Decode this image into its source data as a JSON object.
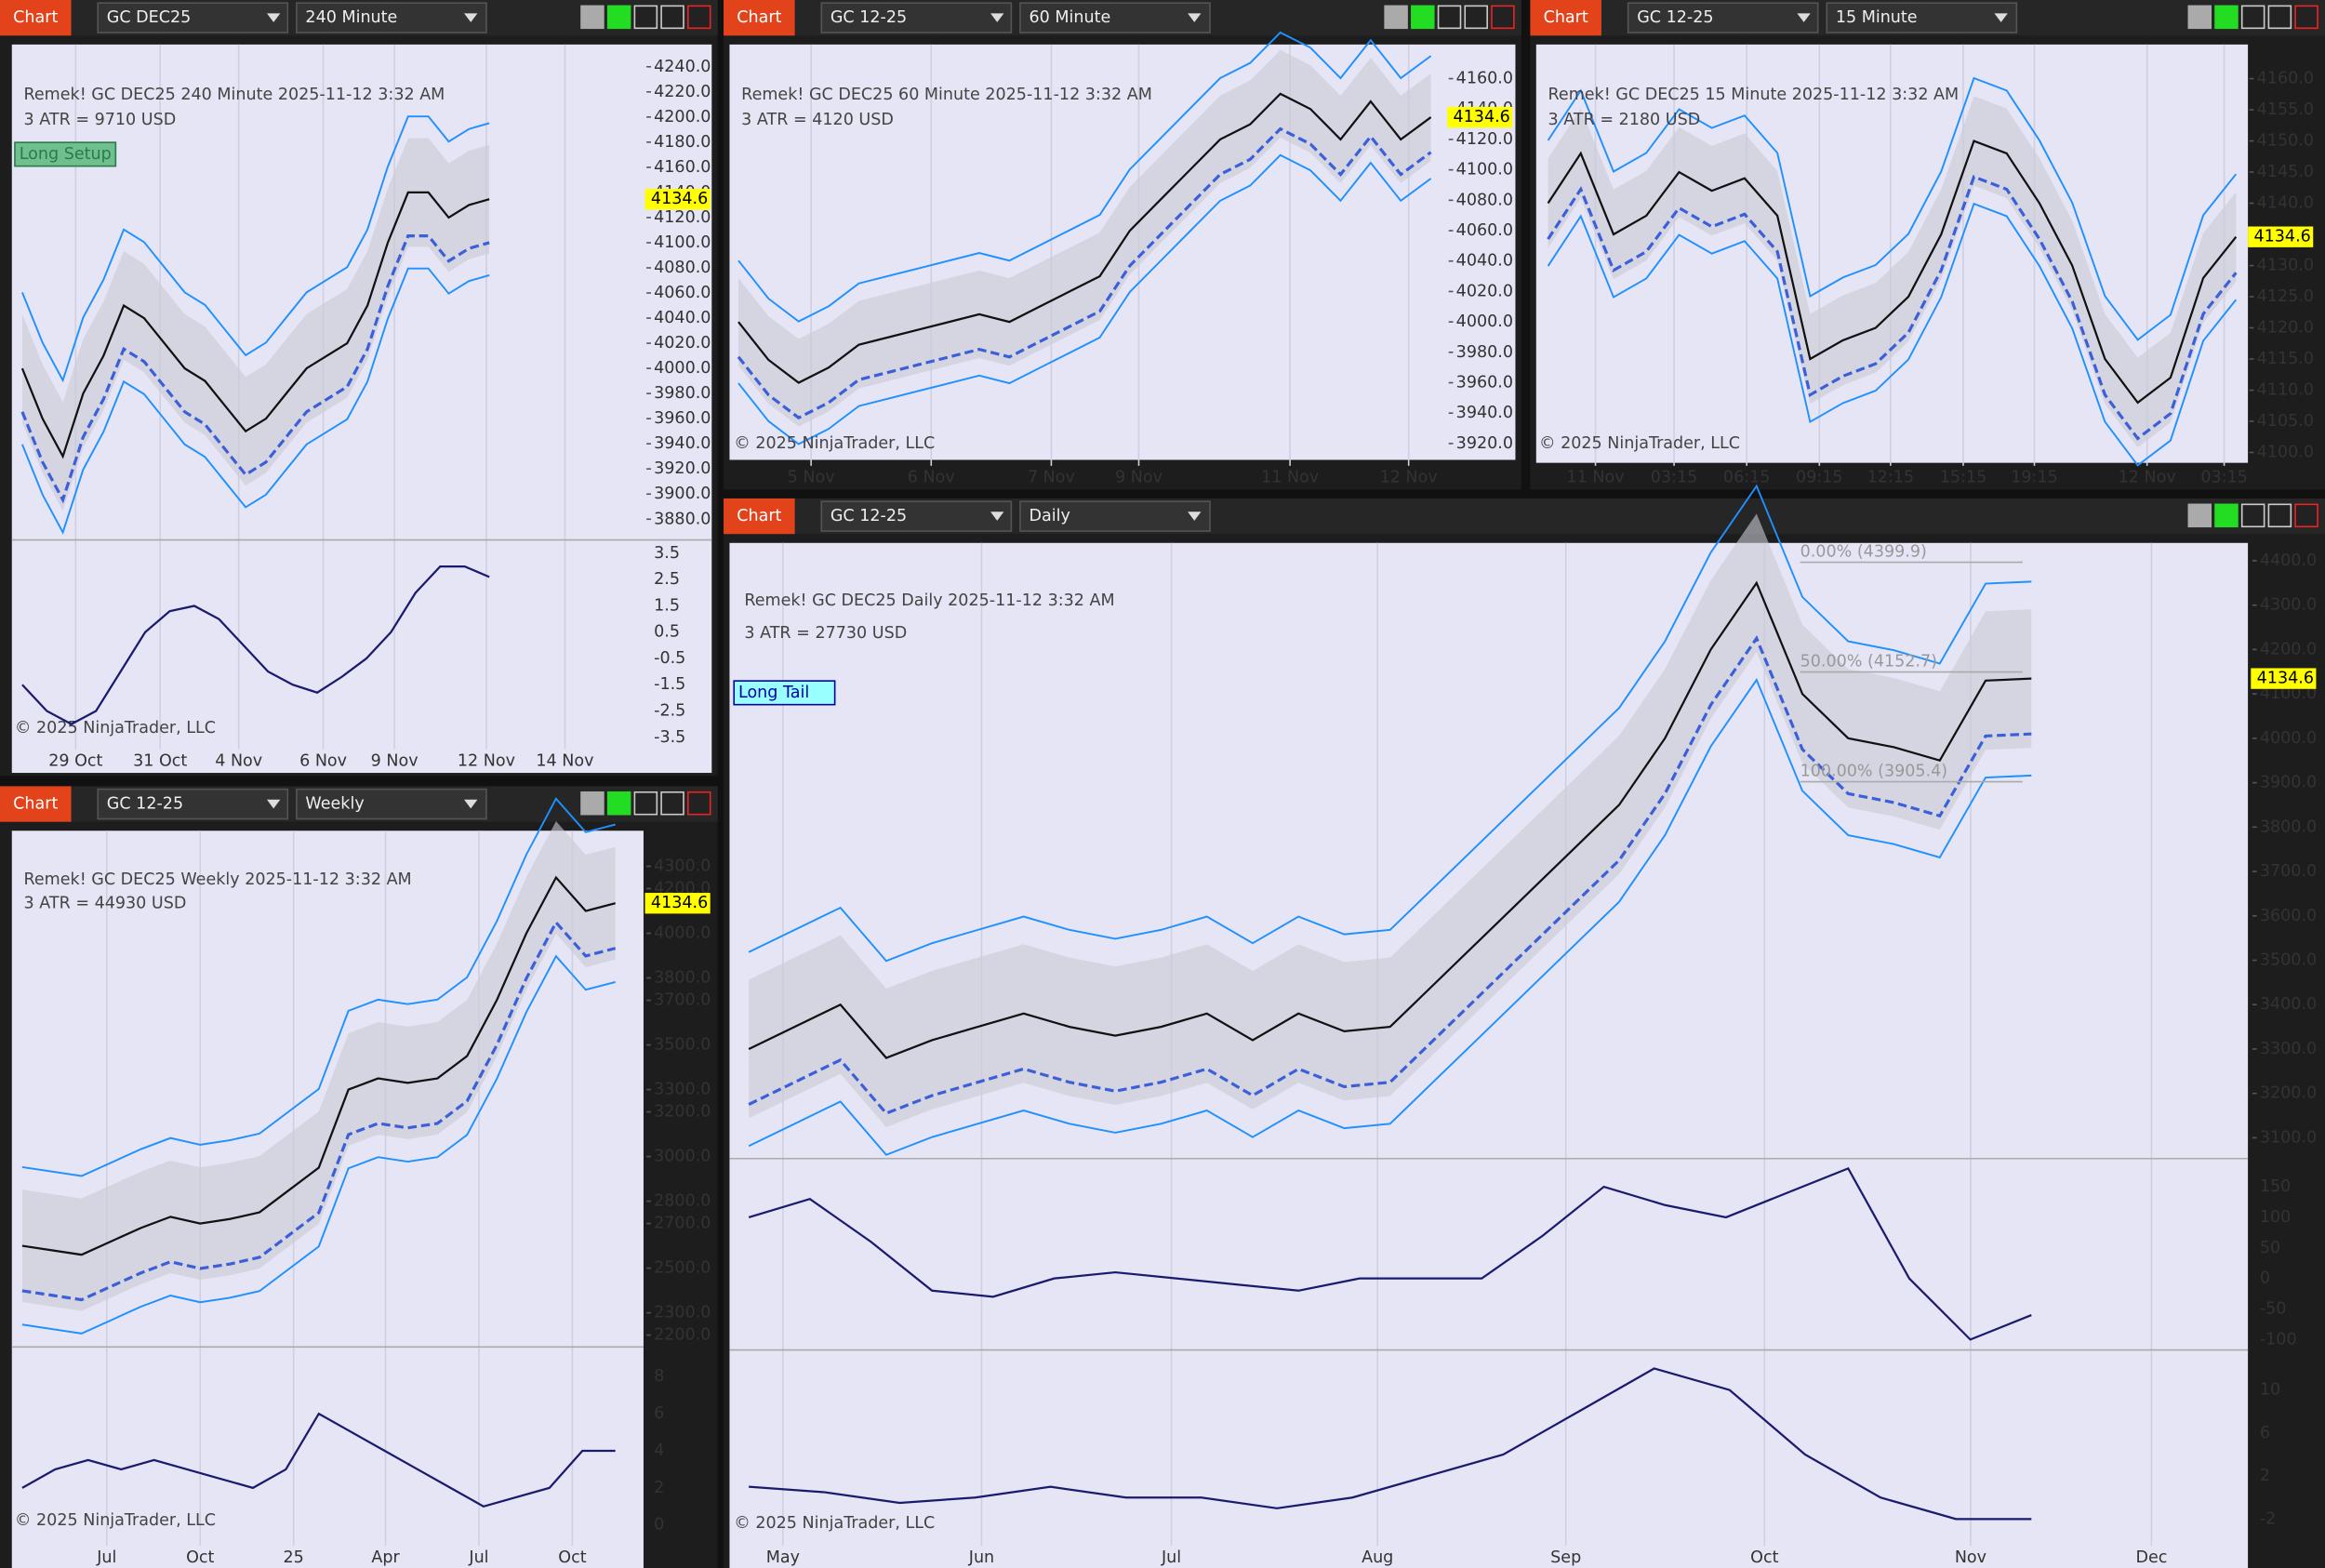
{
  "windows": [
    {
      "tab": "Chart",
      "instrument": "GC DEC25",
      "interval": "240 Minute",
      "header": "Remek!  GC DEC25  240 Minute  2025-11-12 3:32 AM",
      "atr": "3 ATR = 9710 USD",
      "tag": "Long Setup",
      "copyright": "© 2025 NinjaTrader, LLC",
      "price_labels": [
        "4240.0",
        "4220.0",
        "4200.0",
        "4180.0",
        "4160.0",
        "4140.0",
        "4120.0",
        "4100.0",
        "4080.0",
        "4060.0",
        "4040.0",
        "4020.0",
        "4000.0",
        "3980.0",
        "3960.0",
        "3940.0",
        "3920.0",
        "3900.0",
        "3880.0"
      ],
      "last_price": 4134.6,
      "x_labels": [
        "29 Oct",
        "31 Oct",
        "4 Nov",
        "6 Nov",
        "9 Nov",
        "12 Nov",
        "14 Nov"
      ],
      "closes": [
        4000,
        3960,
        3930,
        3980,
        4010,
        4050,
        4040,
        4020,
        4000,
        3990,
        3970,
        3950,
        3960,
        3980,
        4000,
        4010,
        4020,
        4050,
        4100,
        4140,
        4140,
        4120,
        4130,
        4134.6
      ],
      "lower_panes": [
        {
          "labels": [
            "3.5",
            "2.5",
            "1.5",
            "0.5",
            "-0.5",
            "-1.5",
            "-2.5",
            "-3.5"
          ],
          "values": [
            -1.5,
            -2.5,
            -3,
            -2.5,
            -1,
            0.5,
            1.3,
            1.5,
            1,
            0,
            -1,
            -1.5,
            -1.8,
            -1.2,
            -0.5,
            0.5,
            2,
            3,
            3,
            2.6
          ]
        }
      ]
    },
    {
      "tab": "Chart",
      "instrument": "GC 12-25",
      "interval": "60 Minute",
      "header": "Remek!  GC DEC25  60 Minute  2025-11-12 3:32 AM",
      "atr": "3 ATR = 4120 USD",
      "copyright": "© 2025 NinjaTrader, LLC",
      "price_labels": [
        "4160.0",
        "4140.0",
        "4120.0",
        "4100.0",
        "4080.0",
        "4060.0",
        "4040.0",
        "4020.0",
        "4000.0",
        "3980.0",
        "3960.0",
        "3940.0",
        "3920.0"
      ],
      "last_price": 4134.6,
      "x_labels": [
        "5 Nov",
        "6 Nov",
        "7 Nov",
        "9 Nov",
        "11 Nov",
        "12 Nov"
      ],
      "closes": [
        4000,
        3975,
        3960,
        3970,
        3985,
        3990,
        3995,
        4000,
        4005,
        4000,
        4010,
        4020,
        4030,
        4060,
        4080,
        4100,
        4120,
        4130,
        4150,
        4140,
        4120,
        4145,
        4120,
        4134.6
      ],
      "lower_panes": []
    },
    {
      "tab": "Chart",
      "instrument": "GC 12-25",
      "interval": "15 Minute",
      "header": "Remek!  GC DEC25  15 Minute  2025-11-12 3:32 AM",
      "atr": "3 ATR = 2180 USD",
      "copyright": "© 2025 NinjaTrader, LLC",
      "price_labels": [
        "4160.0",
        "4155.0",
        "4150.0",
        "4145.0",
        "4140.0",
        "4135.0",
        "4130.0",
        "4125.0",
        "4120.0",
        "4115.0",
        "4110.0",
        "4105.0",
        "4100.0"
      ],
      "last_price": 4134.6,
      "x_labels": [
        "11 Nov",
        "03:15",
        "06:15",
        "09:15",
        "12:15",
        "15:15",
        "19:15",
        "12 Nov",
        "03:15"
      ],
      "closes": [
        4140,
        4148,
        4135,
        4138,
        4145,
        4142,
        4144,
        4138,
        4115,
        4118,
        4120,
        4125,
        4135,
        4150,
        4148,
        4140,
        4130,
        4115,
        4108,
        4112,
        4128,
        4134.6
      ],
      "lower_panes": []
    },
    {
      "tab": "Chart",
      "instrument": "GC 12-25",
      "interval": "Weekly",
      "header": "Remek!  GC DEC25  Weekly  2025-11-12 3:32 AM",
      "atr": "3 ATR = 44930 USD",
      "copyright": "© 2025 NinjaTrader, LLC",
      "price_labels": [
        "4300.0",
        "4200.0",
        "4000.0",
        "3800.0",
        "3700.0",
        "3500.0",
        "3300.0",
        "3200.0",
        "3000.0",
        "2800.0",
        "2700.0",
        "2500.0",
        "2300.0",
        "2200.0"
      ],
      "last_price": 4134.6,
      "x_labels": [
        "Jul",
        "Oct",
        "25",
        "Apr",
        "Jul",
        "Oct"
      ],
      "closes": [
        2600,
        2580,
        2560,
        2620,
        2680,
        2730,
        2700,
        2720,
        2750,
        2850,
        2950,
        3300,
        3350,
        3330,
        3350,
        3450,
        3700,
        4000,
        4250,
        4100,
        4134.6
      ],
      "lower_panes": [
        {
          "labels": [
            "8",
            "6",
            "4",
            "2",
            "0"
          ],
          "values": [
            2,
            3,
            3.5,
            3,
            3.5,
            3,
            2.5,
            2,
            3,
            6,
            5,
            4,
            3,
            2,
            1,
            1.5,
            2,
            4,
            4
          ]
        }
      ]
    },
    {
      "tab": "Chart",
      "instrument": "GC 12-25",
      "interval": "Daily",
      "header": "Remek!  GC DEC25  Daily  2025-11-12 3:32 AM",
      "atr": "3 ATR = 27730 USD",
      "tag": "Long Tail",
      "copyright": "© 2025 NinjaTrader, LLC",
      "price_labels": [
        "4400.0",
        "4300.0",
        "4200.0",
        "4100.0",
        "4000.0",
        "3900.0",
        "3800.0",
        "3700.0",
        "3600.0",
        "3500.0",
        "3400.0",
        "3300.0",
        "3200.0",
        "3100.0"
      ],
      "last_price": 4134.6,
      "x_labels": [
        "May",
        "Jun",
        "Jul",
        "Aug",
        "Sep",
        "Oct",
        "Nov",
        "Dec"
      ],
      "fib_labels": [
        "0.00% (4399.9)",
        "50.00% (4152.7)",
        "100.00% (3905.4)"
      ],
      "closes": [
        3300,
        3350,
        3400,
        3280,
        3320,
        3350,
        3380,
        3350,
        3330,
        3350,
        3380,
        3320,
        3380,
        3340,
        3350,
        3450,
        3550,
        3650,
        3750,
        3850,
        4000,
        4200,
        4350,
        4100,
        4000,
        3980,
        3950,
        4130,
        4134.6
      ],
      "lower_panes": [
        {
          "labels": [
            "150",
            "100",
            "50",
            "0",
            "-50",
            "-100"
          ],
          "values": [
            100,
            130,
            60,
            -20,
            -30,
            0,
            10,
            0,
            -10,
            -20,
            0,
            0,
            0,
            70,
            150,
            120,
            100,
            140,
            180,
            0,
            -100,
            -60
          ]
        },
        {
          "labels": [
            "10",
            "6",
            "2",
            "-2"
          ],
          "values": [
            1,
            0.5,
            -0.5,
            0,
            1,
            0,
            0,
            -1,
            0,
            2,
            4,
            8,
            12,
            10,
            4,
            0,
            -2,
            -2
          ]
        }
      ]
    }
  ]
}
